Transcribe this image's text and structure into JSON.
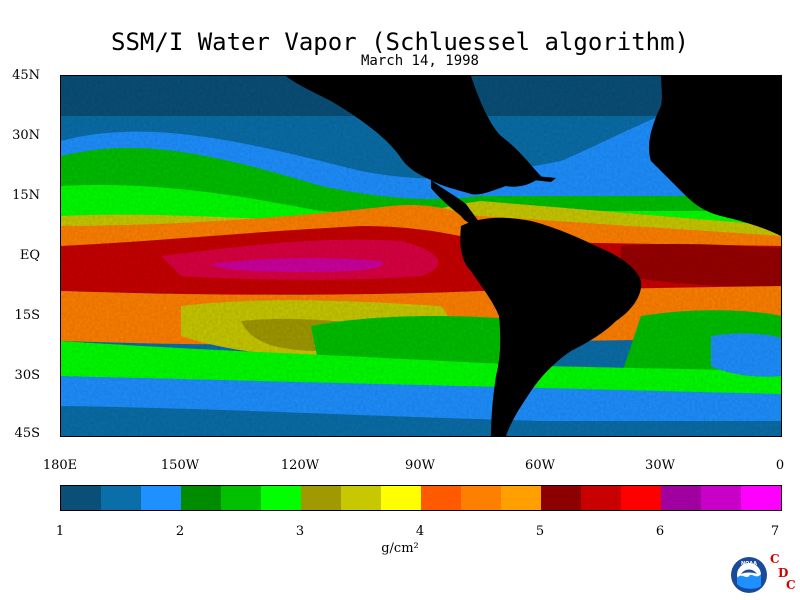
{
  "title": "SSM/I Water Vapor (Schluessel algorithm)",
  "subtitle": "March 14, 1998",
  "lat_labels": [
    "45N",
    "30N",
    "15N",
    "EQ",
    "15S",
    "30S",
    "45S"
  ],
  "lon_labels": [
    "180E",
    "150W",
    "120W",
    "90W",
    "60W",
    "30W",
    "0"
  ],
  "colorbar": {
    "colors": [
      "#0a4f78",
      "#0a6ea8",
      "#1e90ff",
      "#008c00",
      "#00c000",
      "#00ff00",
      "#a09a00",
      "#c8c800",
      "#ffff00",
      "#ff5a00",
      "#ff8000",
      "#ffa000",
      "#8c0000",
      "#c80000",
      "#ff0000",
      "#a000a0",
      "#c800c8",
      "#ff00ff"
    ],
    "ticks": [
      "1",
      "2",
      "3",
      "4",
      "5",
      "6",
      "7"
    ],
    "min": 1,
    "max": 7,
    "units": "g/cm²"
  },
  "logo": {
    "seal_text": "NOAA",
    "letters": [
      "C",
      "D",
      "C"
    ],
    "accent": "#d40000"
  }
}
